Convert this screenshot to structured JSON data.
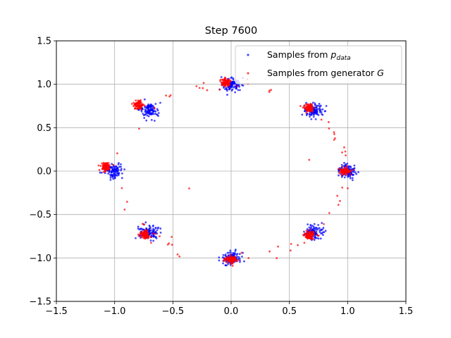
{
  "chart_data": {
    "type": "scatter",
    "title": "Step 7600",
    "xlabel": "",
    "ylabel": "",
    "xlim": [
      -1.5,
      1.5
    ],
    "ylim": [
      -1.5,
      1.5
    ],
    "xticks": [
      -1.5,
      -1.0,
      -0.5,
      0.0,
      0.5,
      1.0,
      1.5
    ],
    "yticks": [
      -1.5,
      -1.0,
      -0.5,
      0.0,
      0.5,
      1.0,
      1.5
    ],
    "xtick_labels": [
      "−1.5",
      "−1.0",
      "−0.5",
      "0.0",
      "0.5",
      "1.0",
      "1.5"
    ],
    "ytick_labels": [
      "−1.5",
      "−1.0",
      "−0.5",
      "0.0",
      "0.5",
      "1.0",
      "1.5"
    ],
    "grid": true,
    "legend_position": "upper-right",
    "series": [
      {
        "name": "Samples from p_data",
        "label_main": "Samples from ",
        "label_math": "p",
        "label_sub": "data",
        "color": "#0000ff",
        "mode_centers": [
          [
            1.0,
            0.0
          ],
          [
            0.707,
            0.707
          ],
          [
            0.0,
            1.0
          ],
          [
            -0.707,
            0.707
          ],
          [
            -1.0,
            0.0
          ],
          [
            -0.707,
            -0.707
          ],
          [
            0.0,
            -1.0
          ],
          [
            0.707,
            -0.707
          ]
        ],
        "mode_std": 0.04,
        "points_per_mode": 110
      },
      {
        "name": "Samples from generator G",
        "label_main": "Samples from generator ",
        "label_math": "G",
        "color": "#ff0000",
        "cluster_centers": [
          [
            0.98,
            0.0
          ],
          [
            0.67,
            0.73
          ],
          [
            -0.05,
            1.02
          ],
          [
            -0.8,
            0.76
          ],
          [
            -1.08,
            0.05
          ],
          [
            -0.74,
            -0.73
          ],
          [
            0.0,
            -1.02
          ],
          [
            0.67,
            -0.74
          ]
        ],
        "cluster_std": 0.022,
        "points_per_cluster": 80,
        "ring_radius": 1.0,
        "ring_points": 70,
        "stray_points": [
          [
            -0.36,
            -0.2
          ],
          [
            0.67,
            0.13
          ]
        ]
      }
    ]
  }
}
